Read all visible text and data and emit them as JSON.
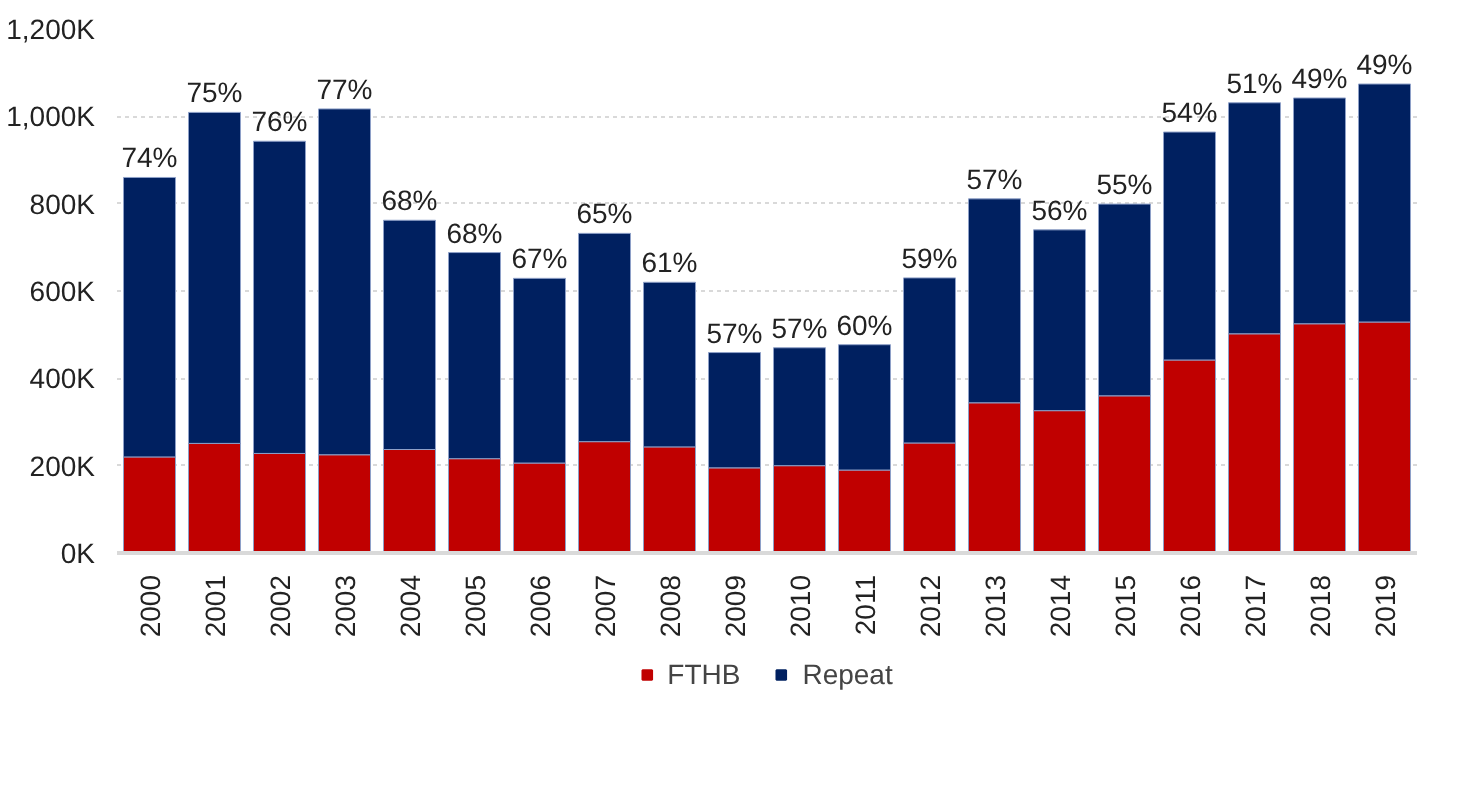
{
  "chart_data": {
    "type": "bar",
    "stacked": true,
    "categories": [
      "2000",
      "2001",
      "2002",
      "2003",
      "2004",
      "2005",
      "2006",
      "2007",
      "2008",
      "2009",
      "2010",
      "2011",
      "2012",
      "2013",
      "2014",
      "2015",
      "2016",
      "2017",
      "2018",
      "2019"
    ],
    "series": [
      {
        "name": "FTHB",
        "color": "#c00000",
        "values": [
          220,
          251,
          228,
          225,
          237,
          216,
          206,
          255,
          243,
          195,
          200,
          190,
          252,
          344,
          326,
          360,
          442,
          502,
          525,
          529
        ]
      },
      {
        "name": "Repeat",
        "color": "#002060",
        "values": [
          640,
          758,
          715,
          792,
          525,
          472,
          423,
          477,
          377,
          264,
          270,
          287,
          378,
          467,
          414,
          439,
          522,
          529,
          517,
          545
        ]
      }
    ],
    "annotations": [
      {
        "text": "74%",
        "x": "2000",
        "y": 860
      },
      {
        "text": "75%",
        "x": "2001",
        "y": 1009
      },
      {
        "text": "76%",
        "x": "2002",
        "y": 943
      },
      {
        "text": "77%",
        "x": "2003",
        "y": 1017
      },
      {
        "text": "68%",
        "x": "2004",
        "y": 762
      },
      {
        "text": "68%",
        "x": "2005",
        "y": 688
      },
      {
        "text": "67%",
        "x": "2006",
        "y": 629
      },
      {
        "text": "65%",
        "x": "2007",
        "y": 732
      },
      {
        "text": "61%",
        "x": "2008",
        "y": 620
      },
      {
        "text": "57%",
        "x": "2009",
        "y": 459
      },
      {
        "text": "57%",
        "x": "2010",
        "y": 470
      },
      {
        "text": "60%",
        "x": "2011",
        "y": 477
      },
      {
        "text": "59%",
        "x": "2012",
        "y": 630
      },
      {
        "text": "57%",
        "x": "2013",
        "y": 811
      },
      {
        "text": "56%",
        "x": "2014",
        "y": 740
      },
      {
        "text": "55%",
        "x": "2015",
        "y": 799
      },
      {
        "text": "54%",
        "x": "2016",
        "y": 964
      },
      {
        "text": "51%",
        "x": "2017",
        "y": 1031
      },
      {
        "text": "49%",
        "x": "2018",
        "y": 1042
      },
      {
        "text": "49%",
        "x": "2019",
        "y": 1074
      }
    ],
    "ylim": [
      0,
      1200
    ],
    "yticks": [
      {
        "value": 0,
        "label": "0K"
      },
      {
        "value": 200,
        "label": "200K"
      },
      {
        "value": 400,
        "label": "400K"
      },
      {
        "value": 600,
        "label": "600K"
      },
      {
        "value": 800,
        "label": "800K"
      },
      {
        "value": 1000,
        "label": "1,000K"
      },
      {
        "value": 1200,
        "label": "1,200K"
      }
    ],
    "grid": "y",
    "legend": "bottom"
  }
}
